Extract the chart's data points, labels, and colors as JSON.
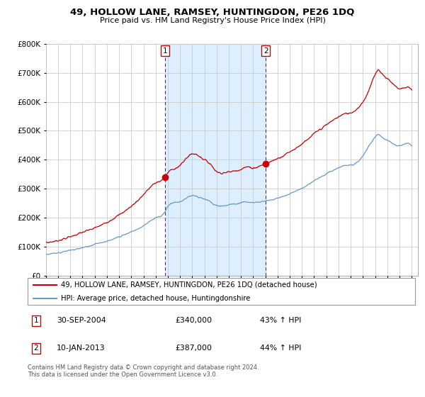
{
  "title": "49, HOLLOW LANE, RAMSEY, HUNTINGDON, PE26 1DQ",
  "subtitle": "Price paid vs. HM Land Registry's House Price Index (HPI)",
  "legend_line1": "49, HOLLOW LANE, RAMSEY, HUNTINGDON, PE26 1DQ (detached house)",
  "legend_line2": "HPI: Average price, detached house, Huntingdonshire",
  "footnote": "Contains HM Land Registry data © Crown copyright and database right 2024.\nThis data is licensed under the Open Government Licence v3.0.",
  "sale1_date": "30-SEP-2004",
  "sale1_price": "£340,000",
  "sale1_hpi": "43% ↑ HPI",
  "sale2_date": "10-JAN-2013",
  "sale2_price": "£387,000",
  "sale2_hpi": "44% ↑ HPI",
  "red_color": "#cc0000",
  "blue_color": "#6699cc",
  "bg_color": "#ddeeff",
  "grid_color": "#cccccc",
  "sale1_x": 2004.75,
  "sale2_x": 2013.03,
  "sale1_y": 340000,
  "sale2_y": 387000,
  "ylim": [
    0,
    800000
  ],
  "xlim_start": 1995.0,
  "xlim_end": 2025.5
}
